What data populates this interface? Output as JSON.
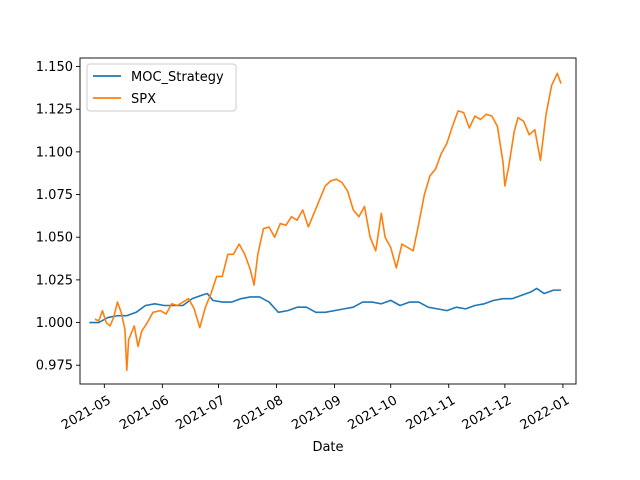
{
  "chart_data": {
    "type": "line",
    "title": "",
    "xlabel": "Date",
    "ylabel": "",
    "xlim": [
      "2021-04-18",
      "2022-01-08"
    ],
    "ylim": [
      0.964,
      1.155
    ],
    "grid": false,
    "legend_position": "top-left",
    "x_ticks": [
      {
        "date": "2021-05-01",
        "label": "2021-05"
      },
      {
        "date": "2021-06-01",
        "label": "2021-06"
      },
      {
        "date": "2021-07-01",
        "label": "2021-07"
      },
      {
        "date": "2021-08-01",
        "label": "2021-08"
      },
      {
        "date": "2021-09-01",
        "label": "2021-09"
      },
      {
        "date": "2021-10-01",
        "label": "2021-10"
      },
      {
        "date": "2021-11-01",
        "label": "2021-11"
      },
      {
        "date": "2021-12-01",
        "label": "2021-12"
      },
      {
        "date": "2022-01-01",
        "label": "2022-01"
      }
    ],
    "y_ticks": [
      {
        "value": 0.975,
        "label": "0.975"
      },
      {
        "value": 1.0,
        "label": "1.000"
      },
      {
        "value": 1.025,
        "label": "1.025"
      },
      {
        "value": 1.05,
        "label": "1.050"
      },
      {
        "value": 1.075,
        "label": "1.075"
      },
      {
        "value": 1.1,
        "label": "1.100"
      },
      {
        "value": 1.125,
        "label": "1.125"
      },
      {
        "value": 1.15,
        "label": "1.150"
      }
    ],
    "series": [
      {
        "name": "MOC_Strategy",
        "color": "#1f77b4",
        "points": [
          [
            "2021-04-23",
            1.0
          ],
          [
            "2021-04-28",
            1.0
          ],
          [
            "2021-05-03",
            1.003
          ],
          [
            "2021-05-08",
            1.004
          ],
          [
            "2021-05-13",
            1.004
          ],
          [
            "2021-05-18",
            1.006
          ],
          [
            "2021-05-23",
            1.01
          ],
          [
            "2021-05-28",
            1.011
          ],
          [
            "2021-06-02",
            1.01
          ],
          [
            "2021-06-07",
            1.01
          ],
          [
            "2021-06-12",
            1.01
          ],
          [
            "2021-06-17",
            1.014
          ],
          [
            "2021-06-22",
            1.016
          ],
          [
            "2021-06-25",
            1.017
          ],
          [
            "2021-06-28",
            1.013
          ],
          [
            "2021-07-03",
            1.012
          ],
          [
            "2021-07-08",
            1.012
          ],
          [
            "2021-07-13",
            1.014
          ],
          [
            "2021-07-18",
            1.015
          ],
          [
            "2021-07-23",
            1.015
          ],
          [
            "2021-07-28",
            1.012
          ],
          [
            "2021-08-02",
            1.006
          ],
          [
            "2021-08-07",
            1.007
          ],
          [
            "2021-08-12",
            1.009
          ],
          [
            "2021-08-17",
            1.009
          ],
          [
            "2021-08-22",
            1.006
          ],
          [
            "2021-08-27",
            1.006
          ],
          [
            "2021-09-01",
            1.007
          ],
          [
            "2021-09-06",
            1.008
          ],
          [
            "2021-09-11",
            1.009
          ],
          [
            "2021-09-16",
            1.012
          ],
          [
            "2021-09-21",
            1.012
          ],
          [
            "2021-09-26",
            1.011
          ],
          [
            "2021-10-01",
            1.013
          ],
          [
            "2021-10-06",
            1.01
          ],
          [
            "2021-10-11",
            1.012
          ],
          [
            "2021-10-16",
            1.012
          ],
          [
            "2021-10-21",
            1.009
          ],
          [
            "2021-10-26",
            1.008
          ],
          [
            "2021-10-31",
            1.007
          ],
          [
            "2021-11-05",
            1.009
          ],
          [
            "2021-11-10",
            1.008
          ],
          [
            "2021-11-15",
            1.01
          ],
          [
            "2021-11-20",
            1.011
          ],
          [
            "2021-11-25",
            1.013
          ],
          [
            "2021-11-30",
            1.014
          ],
          [
            "2021-12-05",
            1.014
          ],
          [
            "2021-12-10",
            1.016
          ],
          [
            "2021-12-15",
            1.018
          ],
          [
            "2021-12-18",
            1.02
          ],
          [
            "2021-12-22",
            1.017
          ],
          [
            "2021-12-27",
            1.019
          ],
          [
            "2021-12-31",
            1.019
          ]
        ]
      },
      {
        "name": "SPX",
        "color": "#ff7f0e",
        "points": [
          [
            "2021-04-26",
            1.002
          ],
          [
            "2021-04-28",
            1.001
          ],
          [
            "2021-04-30",
            1.007
          ],
          [
            "2021-05-02",
            1.0
          ],
          [
            "2021-05-04",
            0.998
          ],
          [
            "2021-05-06",
            1.003
          ],
          [
            "2021-05-08",
            1.012
          ],
          [
            "2021-05-10",
            1.006
          ],
          [
            "2021-05-12",
            0.996
          ],
          [
            "2021-05-13",
            0.972
          ],
          [
            "2021-05-14",
            0.99
          ],
          [
            "2021-05-17",
            0.998
          ],
          [
            "2021-05-19",
            0.986
          ],
          [
            "2021-05-21",
            0.995
          ],
          [
            "2021-05-24",
            1.0
          ],
          [
            "2021-05-27",
            1.006
          ],
          [
            "2021-05-31",
            1.007
          ],
          [
            "2021-06-03",
            1.005
          ],
          [
            "2021-06-06",
            1.011
          ],
          [
            "2021-06-09",
            1.01
          ],
          [
            "2021-06-12",
            1.012
          ],
          [
            "2021-06-15",
            1.014
          ],
          [
            "2021-06-18",
            1.008
          ],
          [
            "2021-06-21",
            0.997
          ],
          [
            "2021-06-24",
            1.009
          ],
          [
            "2021-06-27",
            1.017
          ],
          [
            "2021-06-30",
            1.027
          ],
          [
            "2021-07-03",
            1.027
          ],
          [
            "2021-07-06",
            1.04
          ],
          [
            "2021-07-09",
            1.04
          ],
          [
            "2021-07-12",
            1.046
          ],
          [
            "2021-07-15",
            1.04
          ],
          [
            "2021-07-18",
            1.031
          ],
          [
            "2021-07-20",
            1.022
          ],
          [
            "2021-07-22",
            1.04
          ],
          [
            "2021-07-25",
            1.055
          ],
          [
            "2021-07-28",
            1.056
          ],
          [
            "2021-07-31",
            1.05
          ],
          [
            "2021-08-03",
            1.058
          ],
          [
            "2021-08-06",
            1.057
          ],
          [
            "2021-08-09",
            1.062
          ],
          [
            "2021-08-12",
            1.06
          ],
          [
            "2021-08-15",
            1.066
          ],
          [
            "2021-08-18",
            1.056
          ],
          [
            "2021-08-21",
            1.064
          ],
          [
            "2021-08-24",
            1.072
          ],
          [
            "2021-08-27",
            1.08
          ],
          [
            "2021-08-30",
            1.083
          ],
          [
            "2021-09-02",
            1.084
          ],
          [
            "2021-09-05",
            1.082
          ],
          [
            "2021-09-08",
            1.077
          ],
          [
            "2021-09-11",
            1.066
          ],
          [
            "2021-09-14",
            1.062
          ],
          [
            "2021-09-17",
            1.068
          ],
          [
            "2021-09-20",
            1.05
          ],
          [
            "2021-09-23",
            1.042
          ],
          [
            "2021-09-26",
            1.064
          ],
          [
            "2021-09-28",
            1.05
          ],
          [
            "2021-10-01",
            1.044
          ],
          [
            "2021-10-04",
            1.032
          ],
          [
            "2021-10-07",
            1.046
          ],
          [
            "2021-10-10",
            1.044
          ],
          [
            "2021-10-13",
            1.042
          ],
          [
            "2021-10-16",
            1.058
          ],
          [
            "2021-10-19",
            1.075
          ],
          [
            "2021-10-22",
            1.086
          ],
          [
            "2021-10-25",
            1.09
          ],
          [
            "2021-10-28",
            1.099
          ],
          [
            "2021-10-31",
            1.105
          ],
          [
            "2021-11-03",
            1.115
          ],
          [
            "2021-11-06",
            1.124
          ],
          [
            "2021-11-09",
            1.123
          ],
          [
            "2021-11-12",
            1.114
          ],
          [
            "2021-11-15",
            1.121
          ],
          [
            "2021-11-18",
            1.119
          ],
          [
            "2021-11-21",
            1.122
          ],
          [
            "2021-11-24",
            1.121
          ],
          [
            "2021-11-27",
            1.115
          ],
          [
            "2021-11-30",
            1.094
          ],
          [
            "2021-12-01",
            1.08
          ],
          [
            "2021-12-03",
            1.091
          ],
          [
            "2021-12-06",
            1.112
          ],
          [
            "2021-12-08",
            1.12
          ],
          [
            "2021-12-11",
            1.118
          ],
          [
            "2021-12-14",
            1.11
          ],
          [
            "2021-12-17",
            1.113
          ],
          [
            "2021-12-20",
            1.095
          ],
          [
            "2021-12-23",
            1.122
          ],
          [
            "2021-12-26",
            1.139
          ],
          [
            "2021-12-29",
            1.146
          ],
          [
            "2021-12-31",
            1.14
          ]
        ]
      }
    ]
  }
}
